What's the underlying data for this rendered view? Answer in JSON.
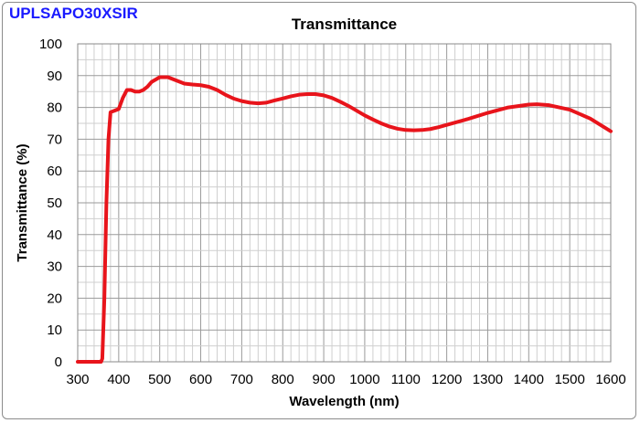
{
  "product_label": "UPLSAPO30XSIR",
  "chart_data": {
    "type": "line",
    "title": "Transmittance",
    "xlabel": "Wavelength (nm)",
    "ylabel": "Transmittance (%)",
    "xlim": [
      300,
      1600
    ],
    "ylim": [
      0,
      100
    ],
    "x_ticks": [
      300,
      400,
      500,
      600,
      700,
      800,
      900,
      1000,
      1100,
      1200,
      1300,
      1400,
      1500,
      1600
    ],
    "y_ticks": [
      0,
      10,
      20,
      30,
      40,
      50,
      60,
      70,
      80,
      90,
      100
    ],
    "x_minor_step": 20,
    "y_minor_step": 5,
    "grid": true,
    "series": [
      {
        "color": "#e8141b",
        "x": [
          300,
          330,
          350,
          357,
          360,
          365,
          370,
          375,
          380,
          390,
          400,
          410,
          420,
          430,
          440,
          450,
          460,
          470,
          480,
          500,
          520,
          540,
          560,
          580,
          600,
          620,
          640,
          660,
          680,
          700,
          720,
          740,
          760,
          780,
          800,
          820,
          840,
          860,
          880,
          900,
          920,
          940,
          960,
          980,
          1000,
          1020,
          1040,
          1060,
          1080,
          1100,
          1120,
          1140,
          1160,
          1180,
          1200,
          1250,
          1300,
          1350,
          1400,
          1420,
          1450,
          1500,
          1550,
          1600
        ],
        "values": [
          0,
          0,
          0,
          0,
          1,
          20,
          50,
          70,
          78.5,
          79,
          79.5,
          83,
          85.5,
          85.5,
          85,
          85,
          85.5,
          86.5,
          88,
          89.5,
          89.5,
          88.5,
          87.5,
          87.2,
          87,
          86.5,
          85.5,
          84,
          82.8,
          82,
          81.5,
          81.3,
          81.5,
          82.2,
          82.8,
          83.5,
          84,
          84.2,
          84.2,
          83.8,
          83,
          81.8,
          80.5,
          79,
          77.5,
          76.2,
          75,
          74,
          73.3,
          72.9,
          72.8,
          72.9,
          73.2,
          73.8,
          74.5,
          76.3,
          78.3,
          80,
          80.9,
          81,
          80.7,
          79.3,
          76.5,
          72.5
        ]
      }
    ]
  }
}
